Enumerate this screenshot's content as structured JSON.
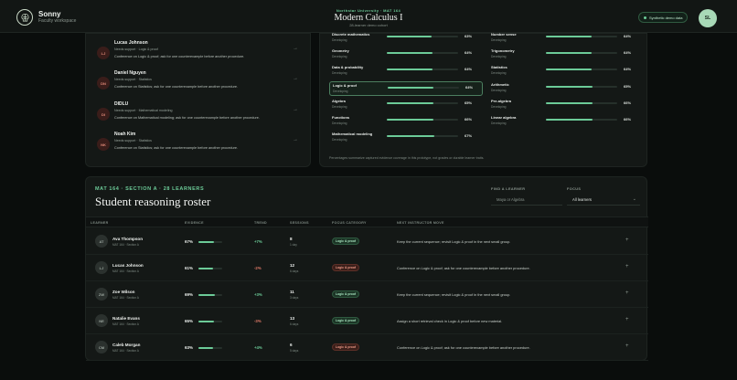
{
  "app": {
    "brand": "Sonny",
    "workspace": "Faculty workspace"
  },
  "course": {
    "kicker": "Northstar University · MAT 164",
    "title": "Modern Calculus I",
    "subtitle": "28-learner demo cohort"
  },
  "demo_badge": "Synthetic demo data",
  "user_initials": "SL",
  "support_list": [
    {
      "initials": "LJ",
      "name": "Lucas Johnson",
      "tag": "Needs support · Logic & proof",
      "note": "Conference on Logic & proof; ask for one counterexample before another procedure."
    },
    {
      "initials": "DN",
      "name": "Daniel Nguyen",
      "tag": "Needs support · Statistics",
      "note": "Conference on Statistics; ask for one counterexample before another procedure."
    },
    {
      "initials": "DI",
      "name": "DIDLU",
      "tag": "Needs support · Mathematical modeling",
      "note": "Conference on Mathematical modeling; ask for one counterexample before another procedure."
    },
    {
      "initials": "NK",
      "name": "Noah Kim",
      "tag": "Needs support · Statistics",
      "note": "Conference on Statistics; ask for one counterexample before another procedure."
    }
  ],
  "skills_left": [
    {
      "name": "Discrete mathematics",
      "level": "Developing",
      "pct": 63,
      "pct_label": "63%"
    },
    {
      "name": "Geometry",
      "level": "Developing",
      "pct": 64,
      "pct_label": "64%"
    },
    {
      "name": "Data & probability",
      "level": "Developing",
      "pct": 64,
      "pct_label": "64%"
    },
    {
      "name": "Logic & proof",
      "level": "Developing",
      "pct": 64,
      "pct_label": "64%",
      "highlighted": true
    },
    {
      "name": "Algebra",
      "level": "Developing",
      "pct": 65,
      "pct_label": "65%"
    },
    {
      "name": "Functions",
      "level": "Developing",
      "pct": 66,
      "pct_label": "66%"
    },
    {
      "name": "Mathematical modeling",
      "level": "Developing",
      "pct": 67,
      "pct_label": "67%"
    }
  ],
  "skills_right": [
    {
      "name": "Number sense",
      "level": "Developing",
      "pct": 64,
      "pct_label": "64%"
    },
    {
      "name": "Trigonometry",
      "level": "Developing",
      "pct": 64,
      "pct_label": "64%"
    },
    {
      "name": "Statistics",
      "level": "Developing",
      "pct": 64,
      "pct_label": "64%"
    },
    {
      "name": "Arithmetic",
      "level": "Developing",
      "pct": 65,
      "pct_label": "65%"
    },
    {
      "name": "Pre-algebra",
      "level": "Developing",
      "pct": 66,
      "pct_label": "66%"
    },
    {
      "name": "Linear algebra",
      "level": "Developing",
      "pct": 66,
      "pct_label": "66%"
    }
  ],
  "skills_footnote": "Percentages summarize captured evidence coverage in this prototype, not grades or durable learner traits.",
  "roster": {
    "kicker": "MAT 164 · SECTION A · 28 LEARNERS",
    "title": "Student reasoning roster",
    "find_label": "FIND A LEARNER",
    "find_placeholder": "Maya or Algebra",
    "focus_label": "FOCUS",
    "focus_value": "All learners",
    "headers": {
      "learner": "LEARNER",
      "evidence": "EVIDENCE",
      "trend": "TREND",
      "sessions": "SESSIONS",
      "focus": "FOCUS CATEGORY",
      "move": "NEXT INSTRUCTOR MOVE"
    },
    "rows": [
      {
        "initials": "AT",
        "name": "Ava Thompson",
        "section": "MAT 164 · Section A",
        "evidence": 67,
        "evidence_label": "67%",
        "trend": "+7%",
        "trend_dir": "up",
        "sessions": "8",
        "ago": "1 day",
        "focus": "Logic & proof",
        "focus_state": "good",
        "move": "Keep the current sequence; revisit Logic & proof in the next small group."
      },
      {
        "initials": "LJ",
        "name": "Lucas Johnson",
        "section": "MAT 164 · Section A",
        "evidence": 61,
        "evidence_label": "61%",
        "trend": "-2%",
        "trend_dir": "down",
        "sessions": "12",
        "ago": "6 days",
        "focus": "Logic & proof",
        "focus_state": "bad",
        "move": "Conference on Logic & proof; ask for one counterexample before another procedure."
      },
      {
        "initials": "ZW",
        "name": "Zoe Wilson",
        "section": "MAT 164 · Section A",
        "evidence": 69,
        "evidence_label": "69%",
        "trend": "+3%",
        "trend_dir": "up",
        "sessions": "11",
        "ago": "3 days",
        "focus": "Logic & proof",
        "focus_state": "good",
        "move": "Keep the current sequence; revisit Logic & proof in the next small group."
      },
      {
        "initials": "NE",
        "name": "Natalie Evans",
        "section": "MAT 164 · Section A",
        "evidence": 65,
        "evidence_label": "65%",
        "trend": "-3%",
        "trend_dir": "down",
        "sessions": "13",
        "ago": "6 days",
        "focus": "Logic & proof",
        "focus_state": "good",
        "move": "Assign a short retrieval check in Logic & proof before new material."
      },
      {
        "initials": "CM",
        "name": "Caleb Morgan",
        "section": "MAT 164 · Section A",
        "evidence": 63,
        "evidence_label": "63%",
        "trend": "+4%",
        "trend_dir": "up",
        "sessions": "6",
        "ago": "5 days",
        "focus": "Logic & proof",
        "focus_state": "bad",
        "move": "Conference on Logic & proof; ask for one counterexample before another procedure."
      }
    ]
  },
  "colors": {
    "accent": "#6ccb98",
    "alert": "#e07a68",
    "background": "#0a0d0c",
    "panel": "#141816"
  },
  "icons": {
    "brand": "brain-icon",
    "row_action": "plus-icon",
    "need_action": "arrow-right-icon",
    "select": "chevron-down-icon"
  }
}
